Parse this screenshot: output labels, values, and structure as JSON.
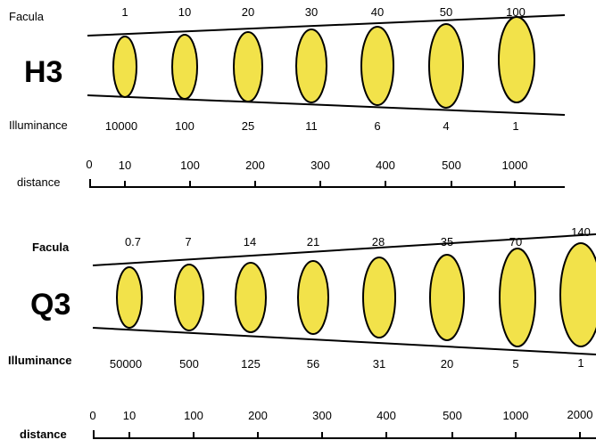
{
  "h3": {
    "model": "H3",
    "facula_label": "Facula",
    "illuminance_label": "Illuminance",
    "distance_label": "distance",
    "facula": [
      "1",
      "10",
      "20",
      "30",
      "40",
      "50",
      "100"
    ],
    "illuminance": [
      "10000",
      "100",
      "25",
      "11",
      "6",
      "4",
      "1"
    ],
    "distance_zero": "0",
    "distance": [
      "10",
      "100",
      "200",
      "300",
      "400",
      "500",
      "1000"
    ]
  },
  "q3": {
    "model": "Q3",
    "facula_label": "Facula",
    "illuminance_label": "Illuminance",
    "distance_label": "distance",
    "facula": [
      "0.7",
      "7",
      "14",
      "21",
      "28",
      "35",
      "70",
      "140"
    ],
    "illuminance": [
      "50000",
      "500",
      "125",
      "56",
      "31",
      "20",
      "5",
      "1"
    ],
    "distance_zero": "0",
    "distance": [
      "10",
      "100",
      "200",
      "300",
      "400",
      "500",
      "1000",
      "2000"
    ]
  },
  "colors": {
    "ellipse_fill": "#f2e24a",
    "stroke": "#000000"
  }
}
